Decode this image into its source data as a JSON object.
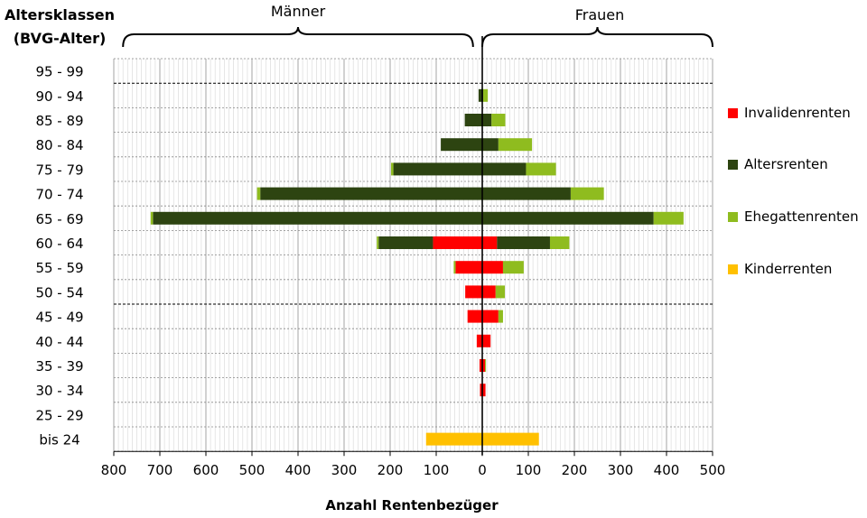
{
  "chart_data": {
    "type": "bar",
    "orientation": "horizontal",
    "stacked": true,
    "diverging": true,
    "y_title_line1": "Altersklassen",
    "y_title_line2": "(BVG-Alter)",
    "xlabel": "Anzahl Rentenbezüger",
    "group_left": "Männer",
    "group_right": "Frauen",
    "xlim": [
      -800,
      500
    ],
    "x_ticks": [
      -800,
      -700,
      -600,
      -500,
      -400,
      -300,
      -200,
      -100,
      0,
      100,
      200,
      300,
      400,
      500
    ],
    "x_tick_labels": [
      "800",
      "700",
      "600",
      "500",
      "400",
      "300",
      "200",
      "100",
      "0",
      "100",
      "200",
      "300",
      "400",
      "500"
    ],
    "categories": [
      "95 - 99",
      "90 - 94",
      "85 - 89",
      "80 - 84",
      "75 - 79",
      "70 - 74",
      "65 - 69",
      "60 - 64",
      "55 - 59",
      "50 - 54",
      "45 - 49",
      "40 - 44",
      "35 - 39",
      "30 - 34",
      "25 - 29",
      "bis 24"
    ],
    "grid": true,
    "legend_position": "right",
    "series": [
      {
        "name": "Invalidenrenten",
        "color": "#ff0000",
        "maenner": [
          0,
          0,
          0,
          0,
          0,
          0,
          0,
          107,
          58,
          37,
          32,
          12,
          6,
          5,
          0,
          0
        ],
        "frauen": [
          0,
          0,
          0,
          0,
          0,
          0,
          0,
          32,
          45,
          29,
          35,
          18,
          6,
          7,
          0,
          0
        ]
      },
      {
        "name": "Altersrenten",
        "color": "#2d4411",
        "maenner": [
          0,
          8,
          38,
          90,
          193,
          482,
          715,
          118,
          0,
          0,
          0,
          0,
          0,
          0,
          0,
          0
        ],
        "frauen": [
          0,
          2,
          20,
          35,
          95,
          192,
          372,
          115,
          0,
          0,
          0,
          0,
          0,
          0,
          0,
          0
        ]
      },
      {
        "name": "Ehegattenrenten",
        "color": "#8fbc1f",
        "maenner": [
          0,
          0,
          0,
          0,
          5,
          7,
          5,
          4,
          4,
          0,
          0,
          0,
          0,
          0,
          0,
          0
        ],
        "frauen": [
          0,
          10,
          30,
          73,
          65,
          72,
          65,
          42,
          45,
          20,
          10,
          0,
          2,
          0,
          0,
          0
        ]
      },
      {
        "name": "Kinderrenten",
        "color": "#ffc000",
        "maenner": [
          0,
          0,
          0,
          0,
          0,
          0,
          0,
          0,
          0,
          0,
          0,
          0,
          0,
          0,
          0,
          122
        ],
        "frauen": [
          0,
          0,
          0,
          0,
          0,
          0,
          0,
          0,
          0,
          0,
          0,
          0,
          0,
          0,
          0,
          123
        ]
      }
    ],
    "dashed_separators_after": [
      "95 - 99",
      "50 - 54"
    ]
  }
}
